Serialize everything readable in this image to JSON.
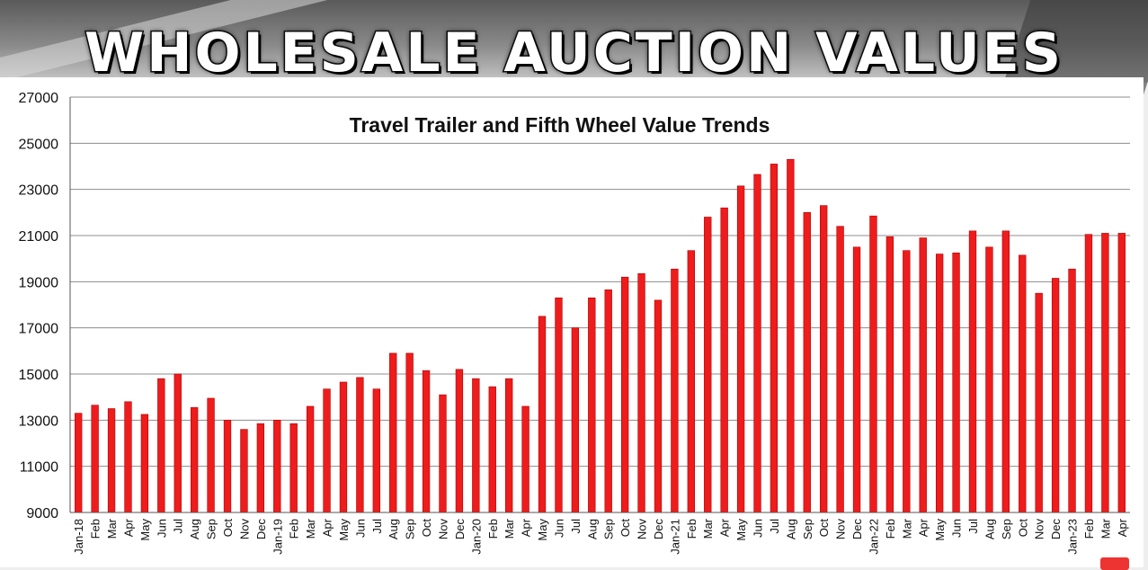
{
  "banner": {
    "title": "WHOLESALE AUCTION VALUES"
  },
  "colors": {
    "bar": "#ee1c1c",
    "grid": "#8c8c8c",
    "axis": "#555555"
  },
  "icons": {
    "corner": "youtube-icon"
  },
  "chart_data": {
    "type": "bar",
    "title": "Travel Trailer and Fifth Wheel Value Trends",
    "xlabel": "",
    "ylabel": "",
    "ylim": [
      9000,
      27000
    ],
    "yticks": [
      9000,
      11000,
      13000,
      15000,
      17000,
      19000,
      21000,
      23000,
      25000,
      27000
    ],
    "grid": true,
    "legend": "none",
    "categories": [
      "Jan-18",
      "Feb",
      "Mar",
      "Apr",
      "May",
      "Jun",
      "Jul",
      "Aug",
      "Sep",
      "Oct",
      "Nov",
      "Dec",
      "Jan-19",
      "Feb",
      "Mar",
      "Apr",
      "May",
      "Jun",
      "Jul",
      "Aug",
      "Sep",
      "Oct",
      "Nov",
      "Dec",
      "Jan-20",
      "Feb",
      "Mar",
      "Apr",
      "May",
      "Jun",
      "Jul",
      "Aug",
      "Sep",
      "Oct",
      "Nov",
      "Dec",
      "Jan-21",
      "Feb",
      "Mar",
      "Apr",
      "May",
      "Jun",
      "Jul",
      "Aug",
      "Sep",
      "Oct",
      "Nov",
      "Dec",
      "Jan-22",
      "Feb",
      "Mar",
      "Apr",
      "May",
      "Jun",
      "Jul",
      "Aug",
      "Sep",
      "Oct",
      "Nov",
      "Dec",
      "Jan-23",
      "Feb",
      "Mar",
      "Apr"
    ],
    "values": [
      13300,
      13650,
      13500,
      13800,
      13250,
      14800,
      15000,
      13550,
      13950,
      13000,
      12600,
      12850,
      13000,
      12850,
      13600,
      14350,
      14650,
      14850,
      14350,
      15900,
      15900,
      15150,
      14100,
      15200,
      14800,
      14450,
      14800,
      13600,
      17500,
      18300,
      17000,
      18300,
      18650,
      19200,
      19350,
      18200,
      19550,
      20350,
      21800,
      22200,
      23150,
      23650,
      24100,
      24300,
      22000,
      22300,
      21400,
      20500,
      21850,
      20950,
      20350,
      20900,
      20200,
      20250,
      21200,
      20500,
      21200,
      20150,
      18500,
      19150,
      19550,
      21050,
      21100,
      21100
    ]
  }
}
